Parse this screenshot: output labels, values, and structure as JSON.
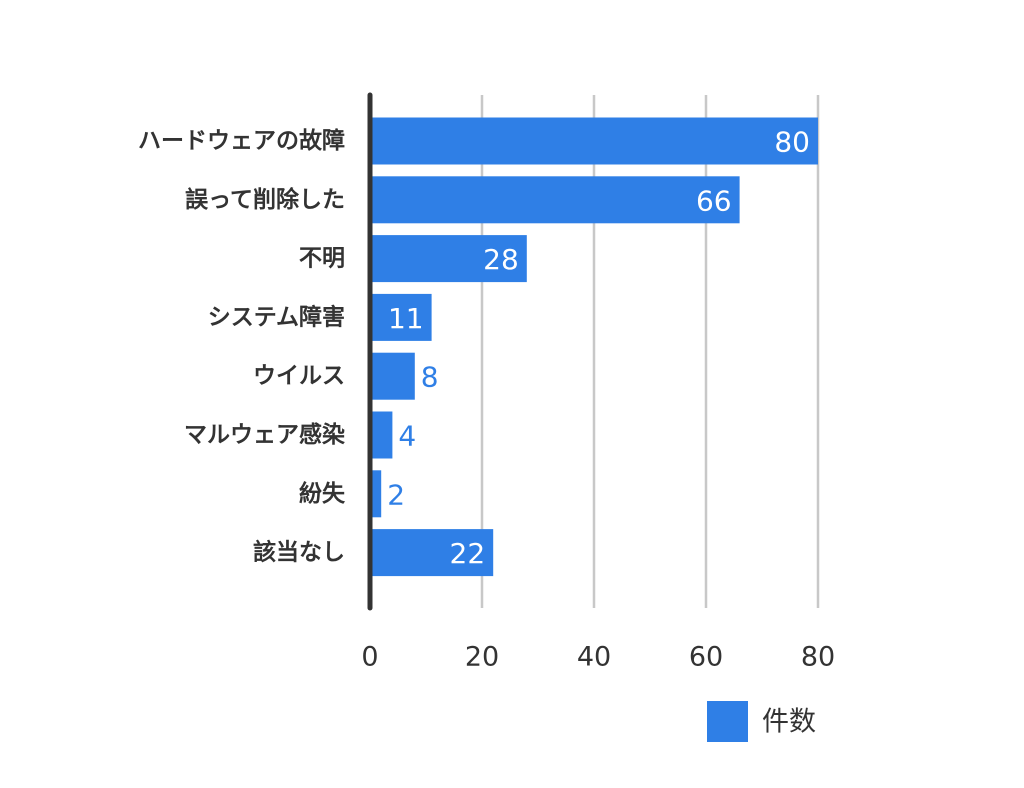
{
  "chart_data": {
    "type": "bar",
    "orientation": "horizontal",
    "categories": [
      "ハードウェアの故障",
      "誤って削除した",
      "不明",
      "システム障害",
      "ウイルス",
      "マルウェア感染",
      "紛失",
      "該当なし"
    ],
    "series": [
      {
        "name": "件数",
        "values": [
          80,
          66,
          28,
          11,
          8,
          4,
          2,
          22
        ],
        "color": "#2f7fe6"
      }
    ],
    "xlim": [
      0,
      80
    ],
    "xticks": [
      0,
      20,
      40,
      60,
      80
    ],
    "grid": true,
    "legend_position": "bottom-right",
    "data_labels": true
  }
}
